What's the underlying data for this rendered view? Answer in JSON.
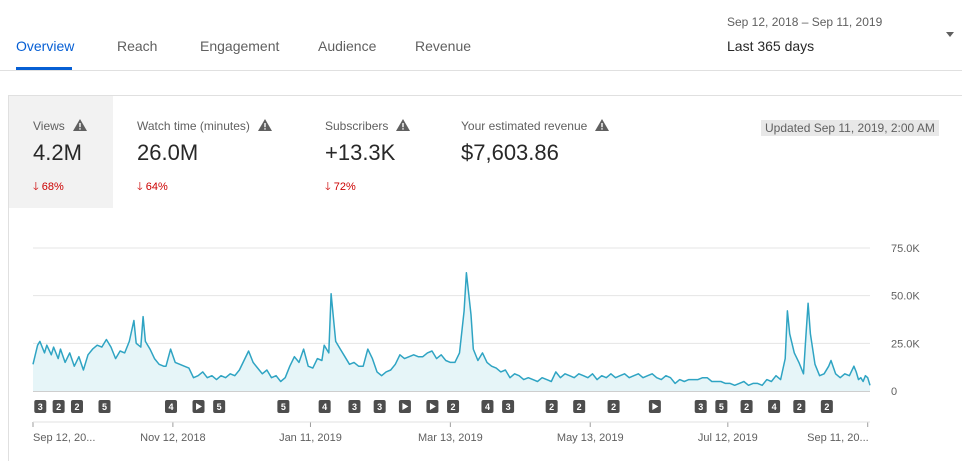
{
  "tabs": [
    {
      "label": "Overview",
      "active": true
    },
    {
      "label": "Reach",
      "active": false
    },
    {
      "label": "Engagement",
      "active": false
    },
    {
      "label": "Audience",
      "active": false
    },
    {
      "label": "Revenue",
      "active": false
    }
  ],
  "date_range": {
    "dates": "Sep 12, 2018 – Sep 11, 2019",
    "label": "Last 365 days"
  },
  "metrics": [
    {
      "label": "Views",
      "value": "4.2M",
      "delta": "68%",
      "direction": "down",
      "selected": true
    },
    {
      "label": "Watch time (minutes)",
      "value": "26.0M",
      "delta": "64%",
      "direction": "down",
      "selected": false
    },
    {
      "label": "Subscribers",
      "value": "+13.3K",
      "delta": "72%",
      "direction": "down",
      "selected": false
    },
    {
      "label": "Your estimated revenue",
      "value": "$7,603.86",
      "delta": "",
      "direction": "",
      "selected": false
    }
  ],
  "updated": "Updated Sep 11, 2019, 2:00 AM",
  "colors": {
    "accent": "#065fd4",
    "line": "#2fa4c3",
    "fill": "#e6f5f8",
    "down": "#cc0000",
    "marker": "#4d4d4d"
  },
  "chart_data": {
    "type": "area",
    "series_name": "Views",
    "x_start": "Sep 12, 2018",
    "x_end": "Sep 11, 2019",
    "ylim": [
      0,
      75000
    ],
    "y_ticks": [
      {
        "value": 75000,
        "label": "75.0K"
      },
      {
        "value": 50000,
        "label": "50.0K"
      },
      {
        "value": 25000,
        "label": "25.0K"
      },
      {
        "value": 0,
        "label": "0"
      }
    ],
    "x_ticks": [
      {
        "day": 0,
        "label": "Sep 12, 20..."
      },
      {
        "day": 61,
        "label": "Nov 12, 2018"
      },
      {
        "day": 121,
        "label": "Jan 11, 2019"
      },
      {
        "day": 182,
        "label": "Mar 13, 2019"
      },
      {
        "day": 243,
        "label": "May 13, 2019"
      },
      {
        "day": 303,
        "label": "Jul 12, 2019"
      },
      {
        "day": 364,
        "label": "Sep 11, 20..."
      }
    ],
    "points": [
      [
        0,
        14000
      ],
      [
        2,
        24000
      ],
      [
        3,
        26000
      ],
      [
        5,
        20000
      ],
      [
        6,
        24000
      ],
      [
        8,
        19000
      ],
      [
        9,
        23000
      ],
      [
        11,
        17000
      ],
      [
        12,
        22000
      ],
      [
        14,
        15000
      ],
      [
        16,
        20000
      ],
      [
        18,
        13000
      ],
      [
        20,
        18000
      ],
      [
        22,
        11000
      ],
      [
        24,
        19000
      ],
      [
        26,
        22000
      ],
      [
        28,
        24000
      ],
      [
        30,
        23000
      ],
      [
        32,
        27000
      ],
      [
        34,
        23000
      ],
      [
        36,
        17000
      ],
      [
        38,
        21000
      ],
      [
        40,
        20000
      ],
      [
        42,
        26000
      ],
      [
        44,
        37000
      ],
      [
        45,
        25000
      ],
      [
        47,
        23000
      ],
      [
        48,
        39000
      ],
      [
        49,
        26000
      ],
      [
        51,
        22000
      ],
      [
        53,
        17000
      ],
      [
        55,
        14000
      ],
      [
        57,
        13000
      ],
      [
        58,
        13000
      ],
      [
        60,
        22000
      ],
      [
        62,
        15000
      ],
      [
        64,
        14000
      ],
      [
        66,
        13000
      ],
      [
        68,
        12000
      ],
      [
        70,
        7000
      ],
      [
        72,
        8000
      ],
      [
        74,
        10000
      ],
      [
        76,
        7000
      ],
      [
        78,
        8000
      ],
      [
        80,
        6000
      ],
      [
        82,
        8000
      ],
      [
        84,
        7000
      ],
      [
        86,
        9000
      ],
      [
        88,
        8000
      ],
      [
        90,
        11000
      ],
      [
        92,
        16000
      ],
      [
        94,
        21000
      ],
      [
        96,
        15000
      ],
      [
        98,
        12000
      ],
      [
        100,
        9000
      ],
      [
        102,
        11000
      ],
      [
        104,
        7000
      ],
      [
        106,
        8000
      ],
      [
        108,
        5000
      ],
      [
        110,
        7000
      ],
      [
        112,
        13000
      ],
      [
        114,
        18000
      ],
      [
        116,
        15000
      ],
      [
        118,
        22000
      ],
      [
        120,
        13000
      ],
      [
        122,
        12000
      ],
      [
        124,
        17000
      ],
      [
        126,
        16000
      ],
      [
        127,
        24000
      ],
      [
        129,
        20000
      ],
      [
        130,
        51000
      ],
      [
        132,
        26000
      ],
      [
        134,
        22000
      ],
      [
        136,
        18000
      ],
      [
        138,
        14000
      ],
      [
        140,
        15000
      ],
      [
        142,
        13000
      ],
      [
        144,
        13000
      ],
      [
        146,
        22000
      ],
      [
        148,
        17000
      ],
      [
        150,
        10000
      ],
      [
        152,
        8000
      ],
      [
        154,
        10000
      ],
      [
        156,
        11000
      ],
      [
        158,
        14000
      ],
      [
        160,
        19000
      ],
      [
        162,
        17000
      ],
      [
        164,
        18000
      ],
      [
        166,
        19000
      ],
      [
        168,
        18000
      ],
      [
        170,
        18000
      ],
      [
        172,
        20000
      ],
      [
        174,
        21000
      ],
      [
        176,
        17000
      ],
      [
        178,
        19000
      ],
      [
        180,
        16000
      ],
      [
        182,
        15000
      ],
      [
        184,
        15000
      ],
      [
        186,
        20000
      ],
      [
        188,
        42000
      ],
      [
        189,
        62000
      ],
      [
        191,
        40000
      ],
      [
        192,
        22000
      ],
      [
        194,
        16000
      ],
      [
        196,
        20000
      ],
      [
        198,
        15000
      ],
      [
        200,
        13000
      ],
      [
        202,
        12000
      ],
      [
        204,
        10000
      ],
      [
        206,
        11000
      ],
      [
        208,
        7000
      ],
      [
        210,
        9000
      ],
      [
        212,
        8000
      ],
      [
        214,
        6000
      ],
      [
        216,
        7000
      ],
      [
        218,
        6000
      ],
      [
        220,
        5000
      ],
      [
        222,
        7000
      ],
      [
        224,
        6000
      ],
      [
        226,
        5000
      ],
      [
        228,
        10000
      ],
      [
        230,
        7000
      ],
      [
        232,
        9000
      ],
      [
        234,
        8000
      ],
      [
        236,
        7000
      ],
      [
        238,
        9000
      ],
      [
        240,
        8000
      ],
      [
        242,
        7000
      ],
      [
        244,
        9000
      ],
      [
        246,
        6000
      ],
      [
        248,
        8000
      ],
      [
        250,
        7000
      ],
      [
        252,
        9000
      ],
      [
        254,
        7000
      ],
      [
        256,
        8000
      ],
      [
        258,
        9000
      ],
      [
        260,
        7000
      ],
      [
        262,
        8000
      ],
      [
        264,
        9000
      ],
      [
        266,
        7000
      ],
      [
        268,
        8000
      ],
      [
        270,
        9000
      ],
      [
        272,
        7000
      ],
      [
        274,
        6000
      ],
      [
        276,
        8000
      ],
      [
        278,
        7000
      ],
      [
        280,
        4000
      ],
      [
        282,
        6000
      ],
      [
        284,
        5000
      ],
      [
        286,
        6000
      ],
      [
        288,
        6000
      ],
      [
        290,
        6000
      ],
      [
        292,
        7000
      ],
      [
        294,
        7000
      ],
      [
        296,
        5000
      ],
      [
        298,
        5000
      ],
      [
        300,
        5000
      ],
      [
        302,
        4000
      ],
      [
        304,
        4000
      ],
      [
        306,
        3000
      ],
      [
        308,
        4000
      ],
      [
        310,
        5000
      ],
      [
        312,
        3000
      ],
      [
        314,
        4000
      ],
      [
        316,
        4000
      ],
      [
        318,
        3000
      ],
      [
        320,
        6000
      ],
      [
        322,
        5000
      ],
      [
        324,
        8000
      ],
      [
        326,
        6000
      ],
      [
        328,
        17000
      ],
      [
        329,
        42000
      ],
      [
        330,
        30000
      ],
      [
        332,
        20000
      ],
      [
        334,
        15000
      ],
      [
        336,
        9000
      ],
      [
        337,
        28000
      ],
      [
        338,
        46000
      ],
      [
        339,
        30000
      ],
      [
        341,
        14000
      ],
      [
        343,
        8000
      ],
      [
        345,
        9000
      ],
      [
        347,
        13000
      ],
      [
        348,
        16000
      ],
      [
        350,
        9000
      ],
      [
        352,
        7000
      ],
      [
        354,
        9000
      ],
      [
        356,
        8000
      ],
      [
        358,
        13000
      ],
      [
        359,
        10000
      ],
      [
        360,
        6000
      ],
      [
        361,
        7000
      ],
      [
        362,
        5000
      ],
      [
        363,
        8000
      ],
      [
        364,
        7000
      ],
      [
        365,
        3000
      ]
    ],
    "markers": [
      {
        "day": 1,
        "label": "3"
      },
      {
        "day": 9,
        "label": "2"
      },
      {
        "day": 17,
        "label": "2"
      },
      {
        "day": 29,
        "label": "5"
      },
      {
        "day": 58,
        "label": "4"
      },
      {
        "day": 70,
        "label": "play"
      },
      {
        "day": 79,
        "label": "5"
      },
      {
        "day": 107,
        "label": "5"
      },
      {
        "day": 125,
        "label": "4"
      },
      {
        "day": 138,
        "label": "3"
      },
      {
        "day": 149,
        "label": "3"
      },
      {
        "day": 160,
        "label": "play"
      },
      {
        "day": 172,
        "label": "play"
      },
      {
        "day": 181,
        "label": "2"
      },
      {
        "day": 196,
        "label": "4"
      },
      {
        "day": 205,
        "label": "3"
      },
      {
        "day": 224,
        "label": "2"
      },
      {
        "day": 236,
        "label": "2"
      },
      {
        "day": 251,
        "label": "2"
      },
      {
        "day": 269,
        "label": "play"
      },
      {
        "day": 289,
        "label": "3"
      },
      {
        "day": 298,
        "label": "5"
      },
      {
        "day": 309,
        "label": "2"
      },
      {
        "day": 321,
        "label": "4"
      },
      {
        "day": 332,
        "label": "2"
      },
      {
        "day": 344,
        "label": "2"
      }
    ]
  }
}
